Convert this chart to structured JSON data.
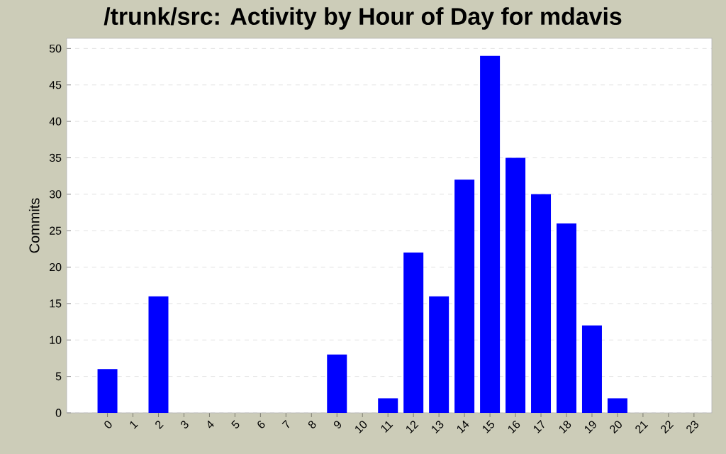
{
  "chart_data": {
    "type": "bar",
    "title": "/trunk/src: Activity by Hour of Day for mdavis",
    "ylabel": "Commits",
    "categories": [
      "0",
      "1",
      "2",
      "3",
      "4",
      "5",
      "6",
      "7",
      "8",
      "9",
      "10",
      "11",
      "12",
      "13",
      "14",
      "15",
      "16",
      "17",
      "18",
      "19",
      "20",
      "21",
      "22",
      "23"
    ],
    "values": [
      6,
      0,
      16,
      0,
      0,
      0,
      0,
      0,
      0,
      8,
      0,
      2,
      22,
      16,
      32,
      49,
      35,
      30,
      26,
      12,
      2,
      0,
      0,
      0
    ],
    "color": "#0000ff",
    "ylim": [
      0,
      51.4
    ],
    "yticks": [
      0,
      5,
      10,
      15,
      20,
      25,
      30,
      35,
      40,
      45,
      50
    ],
    "grid": "y"
  }
}
